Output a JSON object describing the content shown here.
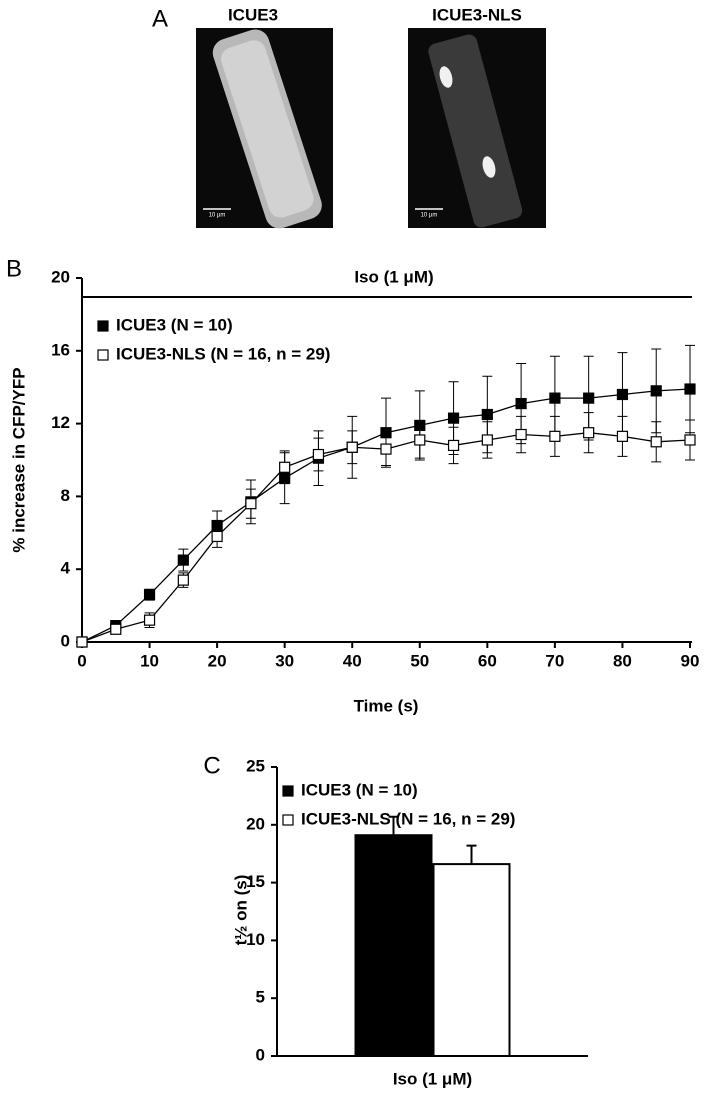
{
  "figure_a": {
    "panel_label": "A",
    "images": [
      {
        "title": "ICUE3",
        "scale_bar": "10 µm"
      },
      {
        "title": "ICUE3-NLS",
        "scale_bar": "10 µm"
      }
    ]
  },
  "chart_data": [
    {
      "type": "line",
      "panel_label": "B",
      "annotation": "Iso (1 μM)",
      "x_label": "Time (s)",
      "y_label": "% increase in CFP/YFP",
      "x": [
        0,
        5,
        10,
        15,
        20,
        25,
        30,
        35,
        40,
        45,
        50,
        55,
        60,
        65,
        70,
        75,
        80,
        85,
        90
      ],
      "series": [
        {
          "name": "ICUE3 (N = 10)",
          "color": "#000000",
          "marker_fill": "#000000",
          "values": [
            0,
            0.9,
            2.6,
            4.5,
            6.4,
            7.7,
            9.0,
            10.1,
            10.7,
            11.5,
            11.9,
            12.3,
            12.5,
            13.1,
            13.4,
            13.4,
            13.6,
            13.8,
            13.9
          ],
          "errors": [
            0,
            0.2,
            0.3,
            0.6,
            0.8,
            1.2,
            1.4,
            1.5,
            1.7,
            1.9,
            1.9,
            2.0,
            2.1,
            2.2,
            2.3,
            2.3,
            2.3,
            2.3,
            2.4
          ]
        },
        {
          "name": "ICUE3-NLS (N = 16, n = 29)",
          "color": "#000000",
          "marker_fill": "#ffffff",
          "values": [
            0,
            0.7,
            1.2,
            3.4,
            5.8,
            7.6,
            9.6,
            10.3,
            10.7,
            10.6,
            11.1,
            10.8,
            11.1,
            11.4,
            11.3,
            11.5,
            11.3,
            11.0,
            11.1
          ],
          "errors": [
            0,
            0.2,
            0.4,
            0.4,
            0.6,
            0.8,
            0.9,
            0.9,
            0.9,
            0.9,
            1.0,
            1.0,
            1.0,
            1.0,
            1.1,
            1.1,
            1.1,
            1.1,
            1.1
          ]
        }
      ],
      "xlim": [
        0,
        90
      ],
      "xticks": [
        0,
        10,
        20,
        30,
        40,
        50,
        60,
        70,
        80,
        90
      ],
      "ylim": [
        0,
        20
      ],
      "yticks": [
        0,
        4,
        8,
        12,
        16,
        20
      ]
    },
    {
      "type": "bar",
      "panel_label": "C",
      "x_label": "Iso (1 μM)",
      "y_label": "t½ on (s)",
      "categories": [
        null
      ],
      "series": [
        {
          "name": "ICUE3 (N = 10)",
          "color": "#000000",
          "values": [
            19.1
          ],
          "errors": [
            1.6
          ]
        },
        {
          "name": "ICUE3-NLS (N = 16, n = 29)",
          "color": "#ffffff",
          "values": [
            16.6
          ],
          "errors": [
            1.6
          ]
        }
      ],
      "ylim": [
        0,
        25
      ],
      "yticks": [
        0,
        5,
        10,
        15,
        20,
        25
      ]
    }
  ]
}
